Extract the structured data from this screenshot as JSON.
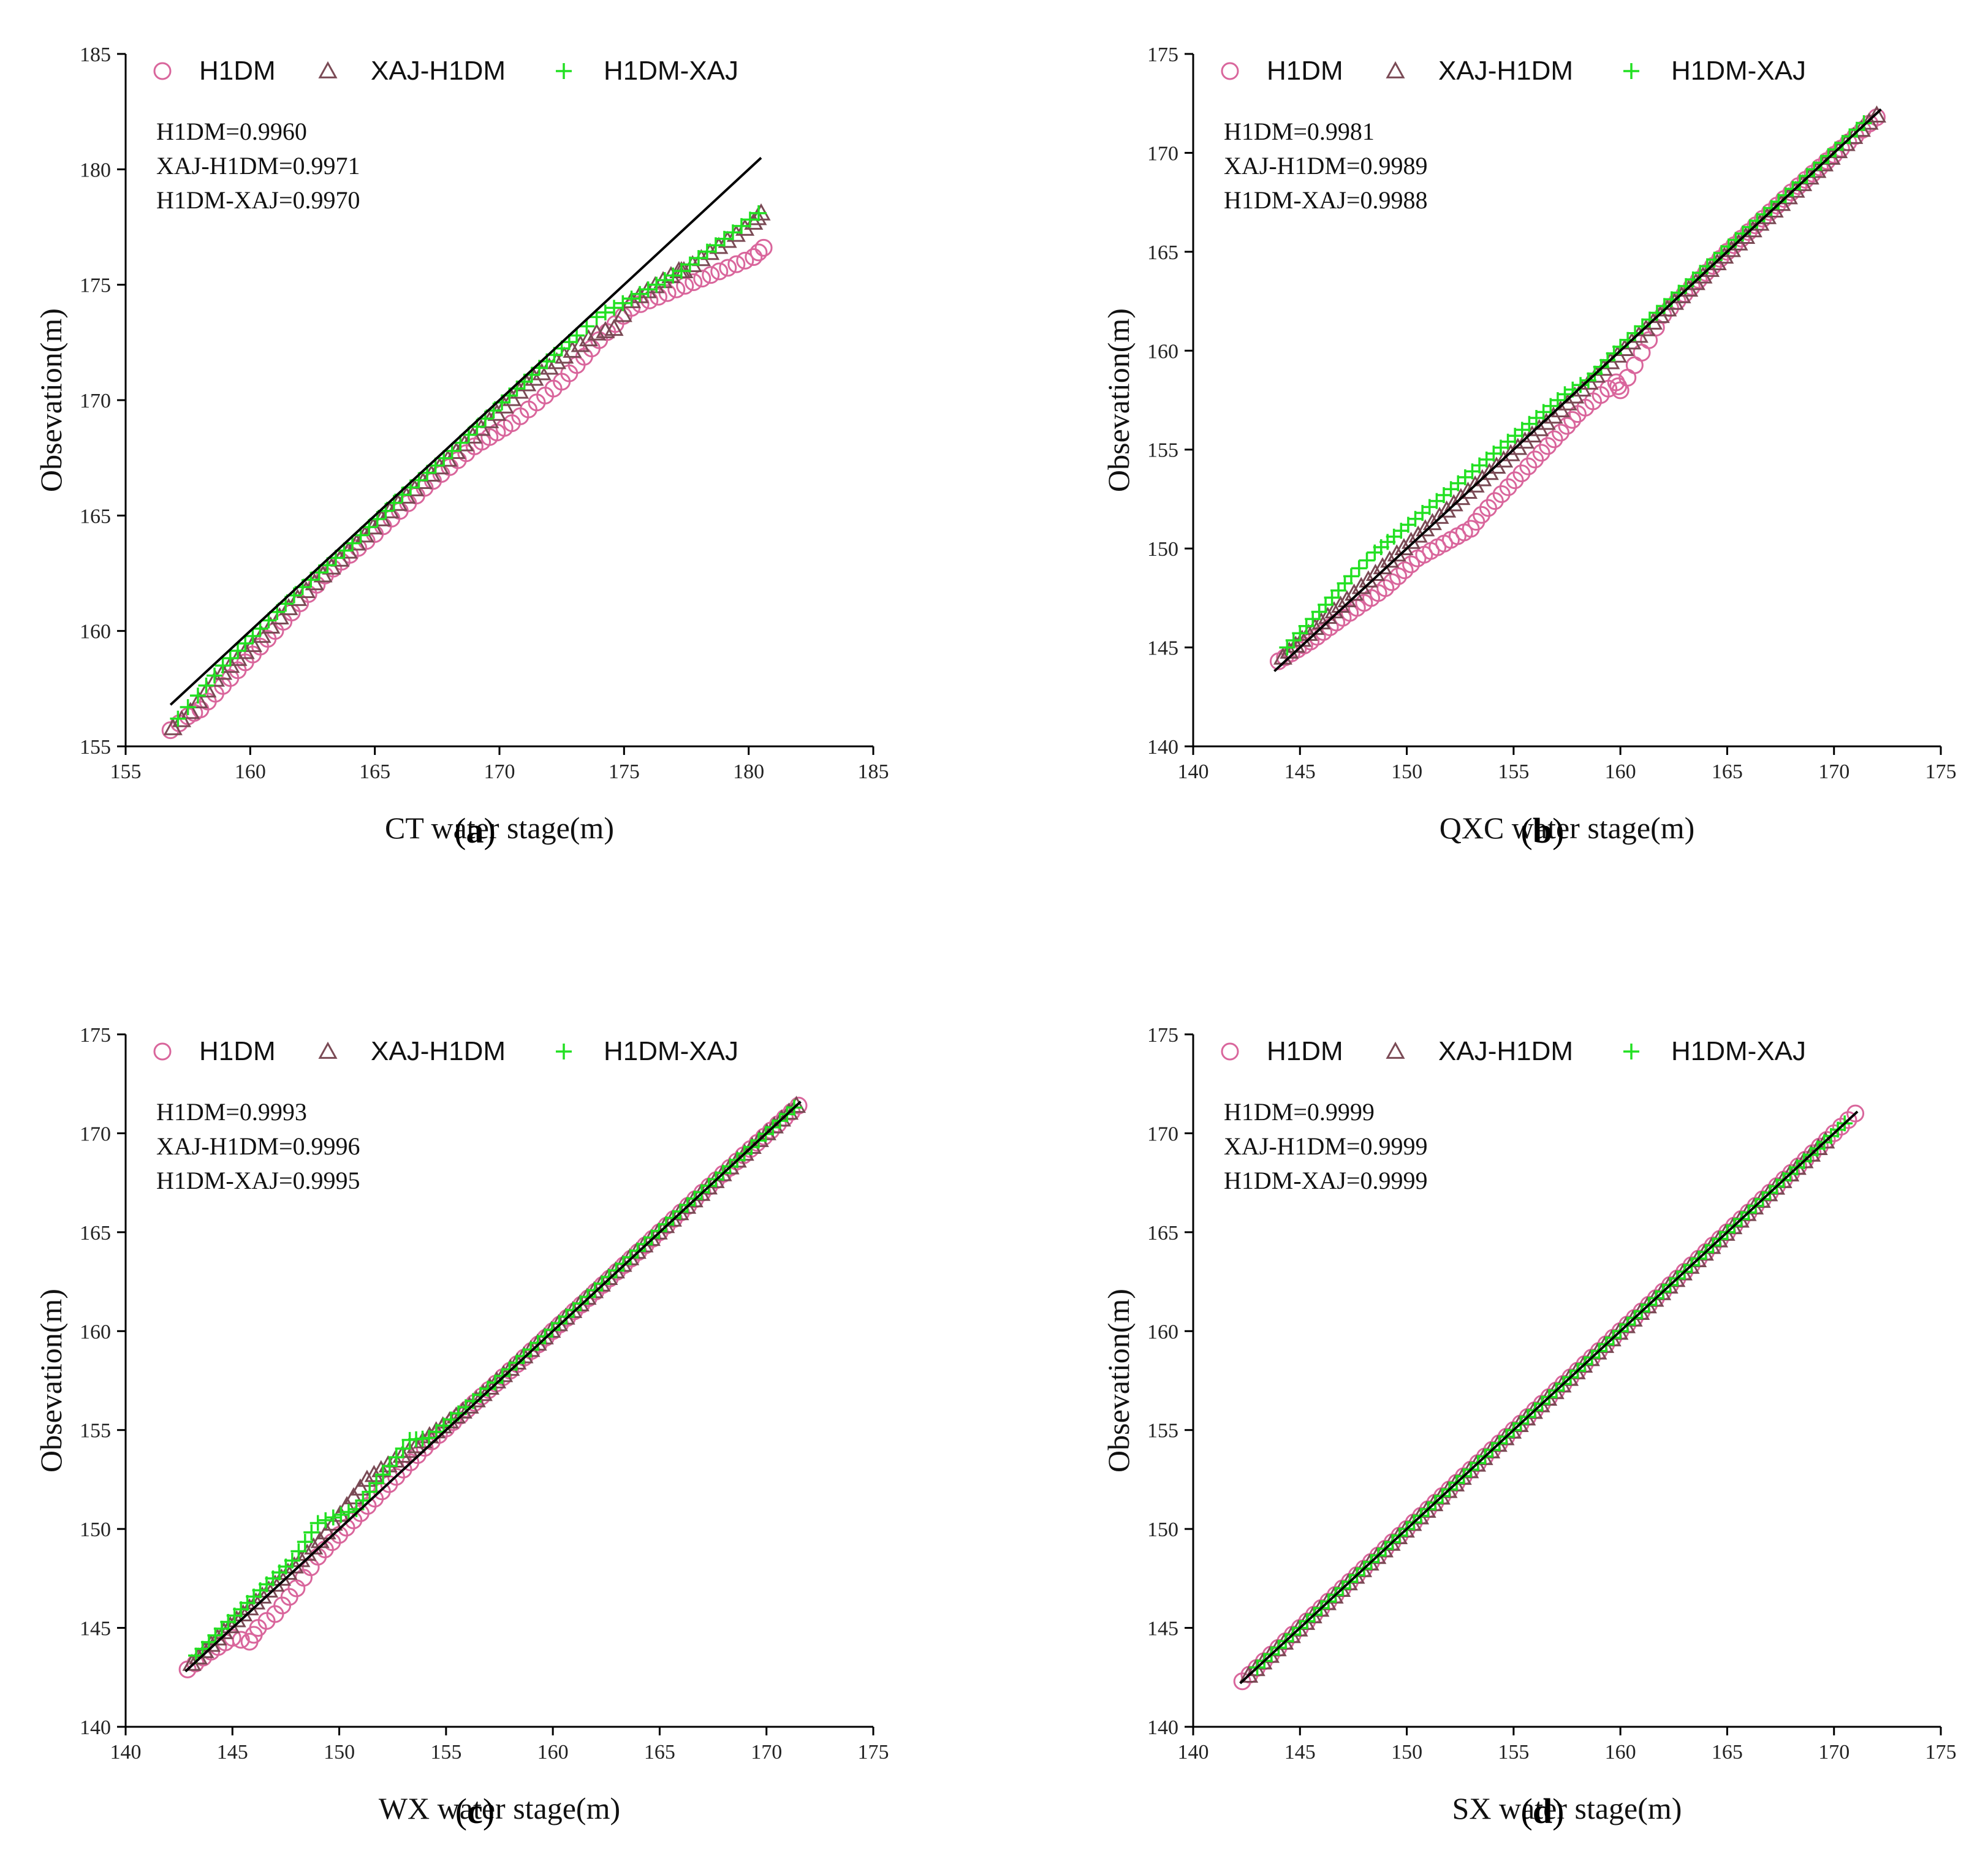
{
  "colors": {
    "h1dm": "#d9669c",
    "xaj_h1dm": "#7a4a55",
    "h1dm_xaj": "#22e022",
    "fit_line": "#000000"
  },
  "chart_data": [
    {
      "type": "scatter",
      "caption": "(a)",
      "caption_letter": "a",
      "xlabel": "CT water stage(m)",
      "ylabel": "Obsevation(m)",
      "xlim": [
        155,
        185
      ],
      "ylim": [
        155,
        185
      ],
      "xticks": [
        155,
        160,
        165,
        170,
        175,
        180,
        185
      ],
      "yticks": [
        155,
        160,
        165,
        170,
        175,
        180,
        185
      ],
      "legend": [
        "H1DM",
        "XAJ-H1DM",
        "H1DM-XAJ"
      ],
      "stats": [
        "H1DM=0.9960",
        "XAJ-H1DM=0.9971",
        "H1DM-XAJ=0.9970"
      ],
      "fit_line": {
        "x": [
          156.8,
          180.5
        ],
        "y": [
          156.8,
          180.5
        ]
      },
      "series": [
        {
          "name": "H1DM",
          "marker": "circle",
          "x": [
            156.8,
            157.5,
            158.0,
            159.5,
            161.0,
            163.0,
            165.0,
            166.0,
            167.0,
            169.0,
            170.5,
            172.5,
            174.0,
            175.3,
            177.1,
            180.2,
            180.6
          ],
          "y": [
            155.7,
            156.3,
            156.6,
            158.3,
            160.0,
            162.4,
            164.2,
            165.2,
            166.2,
            168.0,
            169.0,
            170.8,
            172.6,
            174.0,
            174.8,
            176.2,
            176.6
          ]
        },
        {
          "name": "XAJ-H1DM",
          "marker": "triangle",
          "x": [
            156.9,
            157.6,
            158.6,
            160.1,
            161.9,
            163.6,
            165.6,
            167.6,
            169.6,
            171.1,
            172.6,
            173.9,
            174.6,
            175.3,
            177.2,
            177.4,
            180.2,
            180.5
          ],
          "y": [
            155.8,
            156.5,
            157.9,
            159.4,
            161.4,
            163.1,
            165.2,
            167.1,
            169.1,
            170.7,
            171.9,
            172.9,
            173.1,
            174.3,
            175.6,
            175.6,
            177.7,
            178.1
          ]
        },
        {
          "name": "H1DM-XAJ",
          "marker": "plus",
          "x": [
            157.1,
            157.9,
            158.9,
            160.4,
            162.1,
            164.1,
            166.1,
            168.1,
            170.1,
            171.6,
            173.1,
            173.9,
            175.3,
            177.3,
            180.4
          ],
          "y": [
            156.2,
            157.2,
            158.5,
            160.1,
            161.9,
            163.8,
            165.9,
            167.8,
            169.9,
            171.4,
            172.8,
            173.6,
            174.4,
            175.6,
            178.1
          ]
        }
      ]
    },
    {
      "type": "scatter",
      "caption": "(b)",
      "caption_letter": "b",
      "xlabel": "QXC water stage(m)",
      "ylabel": "Obsevation(m)",
      "xlim": [
        140,
        175
      ],
      "ylim": [
        140,
        175
      ],
      "xticks": [
        140,
        145,
        150,
        155,
        160,
        165,
        170,
        175
      ],
      "yticks": [
        140,
        145,
        150,
        155,
        160,
        165,
        170,
        175
      ],
      "legend": [
        "H1DM",
        "XAJ-H1DM",
        "H1DM-XAJ"
      ],
      "stats": [
        "H1DM=0.9981",
        "XAJ-H1DM=0.9989",
        "H1DM-XAJ=0.9988"
      ],
      "fit_line": {
        "x": [
          143.8,
          172.2
        ],
        "y": [
          143.8,
          172.2
        ]
      },
      "series": [
        {
          "name": "H1DM",
          "marker": "circle",
          "x": [
            144.0,
            145.5,
            147.0,
            149.0,
            150.5,
            153.0,
            153.5,
            156.0,
            157.5,
            158.0,
            159.8,
            160.0,
            162.0,
            165.0,
            168.0,
            172.0
          ],
          "y": [
            144.3,
            145.3,
            146.5,
            148.0,
            149.5,
            151.0,
            151.7,
            154.5,
            156.2,
            156.8,
            158.4,
            158.0,
            161.8,
            165.0,
            168.0,
            171.8
          ]
        },
        {
          "name": "XAJ-H1DM",
          "marker": "triangle",
          "x": [
            144.2,
            145.7,
            147.2,
            149.2,
            151.2,
            153.2,
            155.2,
            157.2,
            159.2,
            161.2,
            164.2,
            167.2,
            170.2,
            172.0
          ],
          "y": [
            144.5,
            146.0,
            147.4,
            149.4,
            151.3,
            153.2,
            155.1,
            157.0,
            159.1,
            161.1,
            164.1,
            167.1,
            170.1,
            171.9
          ]
        },
        {
          "name": "H1DM-XAJ",
          "marker": "plus",
          "x": [
            144.4,
            145.9,
            147.4,
            148.5,
            149.4,
            151.4,
            153.4,
            155.4,
            157.4,
            158.5,
            160.0,
            162.4,
            165.4,
            168.4,
            171.4
          ],
          "y": [
            145.0,
            146.8,
            148.6,
            149.8,
            150.6,
            152.4,
            154.2,
            156.0,
            157.8,
            158.5,
            160.2,
            162.6,
            165.6,
            168.5,
            171.5
          ]
        }
      ]
    },
    {
      "type": "scatter",
      "caption": "(c)",
      "caption_letter": "c",
      "xlabel": "WX water stage(m)",
      "ylabel": "Obsevation(m)",
      "xlim": [
        140,
        175
      ],
      "ylim": [
        140,
        175
      ],
      "xticks": [
        140,
        145,
        150,
        155,
        160,
        165,
        170,
        175
      ],
      "yticks": [
        140,
        145,
        150,
        155,
        160,
        165,
        170,
        175
      ],
      "legend": [
        "H1DM",
        "XAJ-H1DM",
        "H1DM-XAJ"
      ],
      "stats": [
        "H1DM=0.9993",
        "XAJ-H1DM=0.9996",
        "H1DM-XAJ=0.9995"
      ],
      "fit_line": {
        "x": [
          142.8,
          171.6
        ],
        "y": [
          142.8,
          171.6
        ]
      },
      "series": [
        {
          "name": "H1DM",
          "marker": "circle",
          "x": [
            142.9,
            144.0,
            145.0,
            145.8,
            146.2,
            147.0,
            148.0,
            149.0,
            151.0,
            154.0,
            158.0,
            163.0,
            167.0,
            171.5
          ],
          "y": [
            142.9,
            143.8,
            144.5,
            144.3,
            145.0,
            145.7,
            147.0,
            148.6,
            150.8,
            154.1,
            158.0,
            163.0,
            167.0,
            171.4
          ]
        },
        {
          "name": "XAJ-H1DM",
          "marker": "triangle",
          "x": [
            143.1,
            144.6,
            146.1,
            147.6,
            149.1,
            151.3,
            153.6,
            156.1,
            159.6,
            163.6,
            167.6,
            171.4
          ],
          "y": [
            143.2,
            144.8,
            146.3,
            147.8,
            149.4,
            152.5,
            154.2,
            156.2,
            159.7,
            163.7,
            167.6,
            171.4
          ]
        },
        {
          "name": "H1DM-XAJ",
          "marker": "plus",
          "x": [
            143.3,
            144.8,
            146.3,
            147.8,
            149.0,
            150.8,
            153.3,
            154.2,
            157.3,
            161.3,
            165.3,
            169.3,
            171.3
          ],
          "y": [
            143.6,
            145.3,
            146.9,
            148.4,
            150.3,
            151.0,
            154.5,
            154.6,
            157.4,
            161.4,
            165.4,
            169.3,
            171.3
          ]
        }
      ]
    },
    {
      "type": "scatter",
      "caption": "(d)",
      "caption_letter": "d",
      "xlabel": "SX water stage(m)",
      "ylabel": "Obsevation(m)",
      "xlim": [
        140,
        175
      ],
      "ylim": [
        140,
        175
      ],
      "xticks": [
        140,
        145,
        150,
        155,
        160,
        165,
        170,
        175
      ],
      "yticks": [
        140,
        145,
        150,
        155,
        160,
        165,
        170,
        175
      ],
      "legend": [
        "H1DM",
        "XAJ-H1DM",
        "H1DM-XAJ"
      ],
      "stats": [
        "H1DM=0.9999",
        "XAJ-H1DM=0.9999",
        "H1DM-XAJ=0.9999"
      ],
      "fit_line": {
        "x": [
          142.2,
          171.1
        ],
        "y": [
          142.2,
          171.1
        ]
      },
      "series": [
        {
          "name": "H1DM",
          "marker": "circle",
          "x": [
            142.3,
            145.0,
            148.0,
            151.0,
            154.0,
            156.0,
            158.0,
            161.0,
            164.0,
            167.0,
            170.0,
            171.0
          ],
          "y": [
            142.3,
            145.0,
            148.0,
            151.0,
            154.0,
            156.0,
            158.0,
            161.0,
            164.0,
            167.0,
            170.0,
            171.0
          ]
        },
        {
          "name": "XAJ-H1DM",
          "marker": "triangle",
          "x": [
            142.6,
            145.6,
            148.6,
            151.6,
            154.6,
            157.6,
            160.6,
            163.6,
            166.6,
            169.6
          ],
          "y": [
            142.6,
            145.6,
            148.6,
            151.6,
            154.6,
            157.6,
            160.6,
            163.6,
            166.6,
            169.6
          ]
        },
        {
          "name": "H1DM-XAJ",
          "marker": "plus",
          "x": [
            143.0,
            146.0,
            149.0,
            152.0,
            155.0,
            158.0,
            161.0,
            164.0,
            167.0,
            170.5
          ],
          "y": [
            143.0,
            146.0,
            149.0,
            152.0,
            155.0,
            158.0,
            161.0,
            164.0,
            167.0,
            170.5
          ]
        }
      ]
    }
  ]
}
